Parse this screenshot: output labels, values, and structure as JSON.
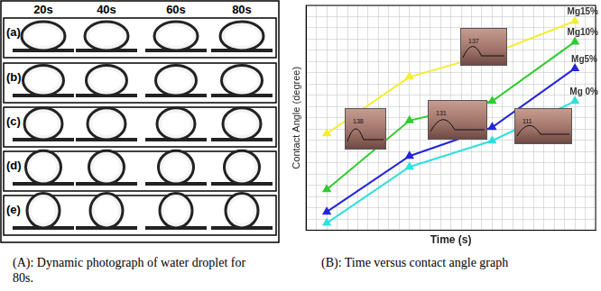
{
  "chart_data": {
    "type": "line",
    "x_label": "Time (s)",
    "y_label": "Contact Angle (degree)",
    "x": [
      20,
      40,
      60,
      80
    ],
    "xlim": [
      15,
      85
    ],
    "xticks": [
      15,
      17.5,
      20,
      22.5,
      25,
      27.5,
      30,
      32.5,
      35,
      37.5,
      40,
      42.5,
      45,
      47.5,
      50,
      52.5,
      55,
      57.5,
      60,
      62.5,
      65,
      67.5,
      70,
      72.5,
      75,
      77.5,
      80,
      82.5,
      85
    ],
    "ylim": [
      90,
      140
    ],
    "yticks": [
      90,
      92.5,
      95,
      97.5,
      100,
      102.5,
      105,
      107.5,
      110,
      112.5,
      115,
      117.5,
      120,
      122.5,
      125,
      127.5,
      130,
      132.5,
      135,
      137.5,
      140
    ],
    "grid": true,
    "tick_labels": false,
    "marker": "triangle",
    "series": [
      {
        "name": "Mg15%",
        "color": "#f2ee2e",
        "values": [
          111.5,
          124.1,
          129.3,
          136.5
        ]
      },
      {
        "name": "Mg10%",
        "color": "#2ecc2e",
        "values": [
          99.1,
          114.4,
          118.7,
          131.9
        ]
      },
      {
        "name": "Mg5%",
        "color": "#2424dc",
        "values": [
          94.1,
          106.5,
          112.9,
          126.0
        ]
      },
      {
        "name": "Mg 0%",
        "color": "#2ee0e0",
        "values": [
          91.6,
          104.1,
          109.9,
          118.7
        ]
      }
    ],
    "annotations": [
      {
        "text": "138"
      },
      {
        "text": "131"
      },
      {
        "text": "137"
      },
      {
        "text": "111"
      }
    ]
  },
  "photo_panel": {
    "time_labels": [
      "20s",
      "40s",
      "60s",
      "80s"
    ],
    "row_labels": [
      "(a)",
      "(b)",
      "(c)",
      "(d)",
      "(e)"
    ]
  },
  "captions": [
    "(A): Dynamic photograph of water droplet for 80s.",
    "(B): Time versus contact angle graph"
  ]
}
